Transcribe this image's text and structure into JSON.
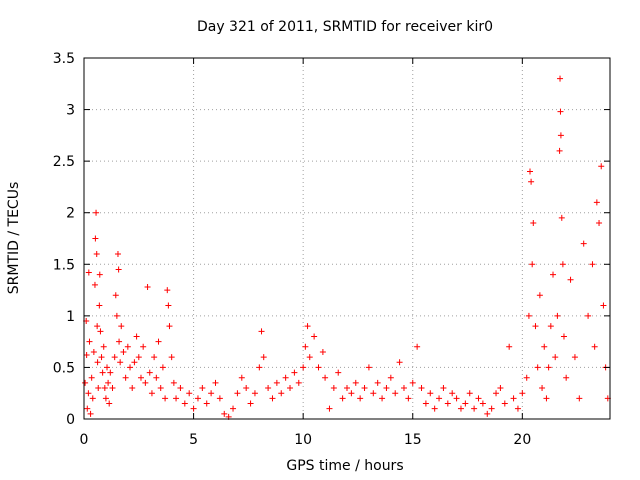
{
  "chart_data": {
    "type": "scatter",
    "title": "Day 321 of 2011, SRMTID for receiver kir0",
    "xlabel": "GPS time / hours",
    "ylabel": "SRMTID / TECUs",
    "xlim": [
      0,
      24
    ],
    "ylim": [
      0,
      3.5
    ],
    "x_ticks": [
      0,
      5,
      10,
      15,
      20
    ],
    "x_tick_labels": [
      "0",
      "5",
      "10",
      "15",
      "20"
    ],
    "y_ticks": [
      0,
      0.5,
      1,
      1.5,
      2,
      2.5,
      3,
      3.5
    ],
    "y_tick_labels": [
      "0",
      "0.5",
      "1",
      "1.5",
      "2",
      "2.5",
      "3",
      "3.5"
    ],
    "grid": true,
    "legend": "none",
    "marker": "plus",
    "color": "#ff0000",
    "series": [
      {
        "points": [
          [
            0.05,
            0.35
          ],
          [
            0.1,
            0.95
          ],
          [
            0.12,
            0.62
          ],
          [
            0.15,
            0.1
          ],
          [
            0.2,
            0.25
          ],
          [
            0.22,
            1.42
          ],
          [
            0.25,
            0.75
          ],
          [
            0.3,
            0.05
          ],
          [
            0.35,
            0.4
          ],
          [
            0.4,
            0.2
          ],
          [
            0.45,
            0.65
          ],
          [
            0.5,
            1.3
          ],
          [
            0.52,
            1.75
          ],
          [
            0.55,
            2.0
          ],
          [
            0.58,
            1.6
          ],
          [
            0.6,
            0.9
          ],
          [
            0.62,
            0.55
          ],
          [
            0.65,
            0.3
          ],
          [
            0.7,
            1.1
          ],
          [
            0.72,
            1.4
          ],
          [
            0.75,
            0.85
          ],
          [
            0.8,
            0.6
          ],
          [
            0.85,
            0.45
          ],
          [
            0.9,
            0.7
          ],
          [
            0.95,
            0.3
          ],
          [
            1.0,
            0.2
          ],
          [
            1.05,
            0.5
          ],
          [
            1.1,
            0.35
          ],
          [
            1.15,
            0.15
          ],
          [
            1.2,
            0.45
          ],
          [
            1.3,
            0.3
          ],
          [
            1.4,
            0.6
          ],
          [
            1.45,
            1.2
          ],
          [
            1.5,
            1.0
          ],
          [
            1.55,
            1.6
          ],
          [
            1.58,
            1.45
          ],
          [
            1.6,
            0.75
          ],
          [
            1.65,
            0.55
          ],
          [
            1.7,
            0.9
          ],
          [
            1.8,
            0.65
          ],
          [
            1.9,
            0.4
          ],
          [
            2.0,
            0.7
          ],
          [
            2.1,
            0.5
          ],
          [
            2.2,
            0.3
          ],
          [
            2.3,
            0.55
          ],
          [
            2.4,
            0.8
          ],
          [
            2.5,
            0.6
          ],
          [
            2.6,
            0.4
          ],
          [
            2.7,
            0.7
          ],
          [
            2.8,
            0.35
          ],
          [
            2.9,
            1.28
          ],
          [
            3.0,
            0.45
          ],
          [
            3.1,
            0.25
          ],
          [
            3.2,
            0.6
          ],
          [
            3.3,
            0.4
          ],
          [
            3.4,
            0.75
          ],
          [
            3.5,
            0.3
          ],
          [
            3.6,
            0.5
          ],
          [
            3.7,
            0.2
          ],
          [
            3.8,
            1.25
          ],
          [
            3.85,
            1.1
          ],
          [
            3.9,
            0.9
          ],
          [
            4.0,
            0.6
          ],
          [
            4.1,
            0.35
          ],
          [
            4.2,
            0.2
          ],
          [
            4.4,
            0.3
          ],
          [
            4.6,
            0.15
          ],
          [
            4.8,
            0.25
          ],
          [
            5.0,
            0.1
          ],
          [
            5.2,
            0.2
          ],
          [
            5.4,
            0.3
          ],
          [
            5.6,
            0.15
          ],
          [
            5.8,
            0.25
          ],
          [
            6.0,
            0.35
          ],
          [
            6.2,
            0.2
          ],
          [
            6.4,
            0.05
          ],
          [
            6.6,
            0.02
          ],
          [
            6.8,
            0.1
          ],
          [
            7.0,
            0.25
          ],
          [
            7.2,
            0.4
          ],
          [
            7.4,
            0.3
          ],
          [
            7.6,
            0.15
          ],
          [
            7.8,
            0.25
          ],
          [
            8.0,
            0.5
          ],
          [
            8.1,
            0.85
          ],
          [
            8.2,
            0.6
          ],
          [
            8.4,
            0.3
          ],
          [
            8.6,
            0.2
          ],
          [
            8.8,
            0.35
          ],
          [
            9.0,
            0.25
          ],
          [
            9.2,
            0.4
          ],
          [
            9.4,
            0.3
          ],
          [
            9.6,
            0.45
          ],
          [
            9.8,
            0.35
          ],
          [
            10.0,
            0.5
          ],
          [
            10.1,
            0.7
          ],
          [
            10.2,
            0.9
          ],
          [
            10.3,
            0.6
          ],
          [
            10.5,
            0.8
          ],
          [
            10.7,
            0.5
          ],
          [
            10.9,
            0.65
          ],
          [
            11.0,
            0.4
          ],
          [
            11.2,
            0.1
          ],
          [
            11.4,
            0.3
          ],
          [
            11.6,
            0.45
          ],
          [
            11.8,
            0.2
          ],
          [
            12.0,
            0.3
          ],
          [
            12.2,
            0.25
          ],
          [
            12.4,
            0.35
          ],
          [
            12.6,
            0.2
          ],
          [
            12.8,
            0.3
          ],
          [
            13.0,
            0.5
          ],
          [
            13.2,
            0.25
          ],
          [
            13.4,
            0.35
          ],
          [
            13.6,
            0.2
          ],
          [
            13.8,
            0.3
          ],
          [
            14.0,
            0.4
          ],
          [
            14.2,
            0.25
          ],
          [
            14.4,
            0.55
          ],
          [
            14.6,
            0.3
          ],
          [
            14.8,
            0.2
          ],
          [
            15.0,
            0.35
          ],
          [
            15.2,
            0.7
          ],
          [
            15.4,
            0.3
          ],
          [
            15.6,
            0.15
          ],
          [
            15.8,
            0.25
          ],
          [
            16.0,
            0.1
          ],
          [
            16.2,
            0.2
          ],
          [
            16.4,
            0.3
          ],
          [
            16.6,
            0.15
          ],
          [
            16.8,
            0.25
          ],
          [
            17.0,
            0.2
          ],
          [
            17.2,
            0.1
          ],
          [
            17.4,
            0.15
          ],
          [
            17.6,
            0.25
          ],
          [
            17.8,
            0.1
          ],
          [
            18.0,
            0.2
          ],
          [
            18.2,
            0.15
          ],
          [
            18.4,
            0.05
          ],
          [
            18.6,
            0.1
          ],
          [
            18.8,
            0.25
          ],
          [
            19.0,
            0.3
          ],
          [
            19.2,
            0.15
          ],
          [
            19.4,
            0.7
          ],
          [
            19.6,
            0.2
          ],
          [
            19.8,
            0.1
          ],
          [
            20.0,
            0.25
          ],
          [
            20.2,
            0.4
          ],
          [
            20.3,
            1.0
          ],
          [
            20.35,
            2.4
          ],
          [
            20.4,
            2.3
          ],
          [
            20.45,
            1.5
          ],
          [
            20.5,
            1.9
          ],
          [
            20.6,
            0.9
          ],
          [
            20.7,
            0.5
          ],
          [
            20.8,
            1.2
          ],
          [
            20.9,
            0.3
          ],
          [
            21.0,
            0.7
          ],
          [
            21.1,
            0.2
          ],
          [
            21.2,
            0.5
          ],
          [
            21.3,
            0.9
          ],
          [
            21.4,
            1.4
          ],
          [
            21.5,
            0.6
          ],
          [
            21.6,
            1.0
          ],
          [
            21.7,
            2.6
          ],
          [
            21.72,
            3.3
          ],
          [
            21.74,
            2.98
          ],
          [
            21.76,
            2.75
          ],
          [
            21.8,
            1.95
          ],
          [
            21.85,
            1.5
          ],
          [
            21.9,
            0.8
          ],
          [
            22.0,
            0.4
          ],
          [
            22.2,
            1.35
          ],
          [
            22.4,
            0.6
          ],
          [
            22.6,
            0.2
          ],
          [
            22.8,
            1.7
          ],
          [
            23.0,
            1.0
          ],
          [
            23.2,
            1.5
          ],
          [
            23.3,
            0.7
          ],
          [
            23.4,
            2.1
          ],
          [
            23.5,
            1.9
          ],
          [
            23.6,
            2.45
          ],
          [
            23.7,
            1.1
          ],
          [
            23.8,
            0.5
          ],
          [
            23.9,
            0.2
          ]
        ]
      }
    ]
  }
}
